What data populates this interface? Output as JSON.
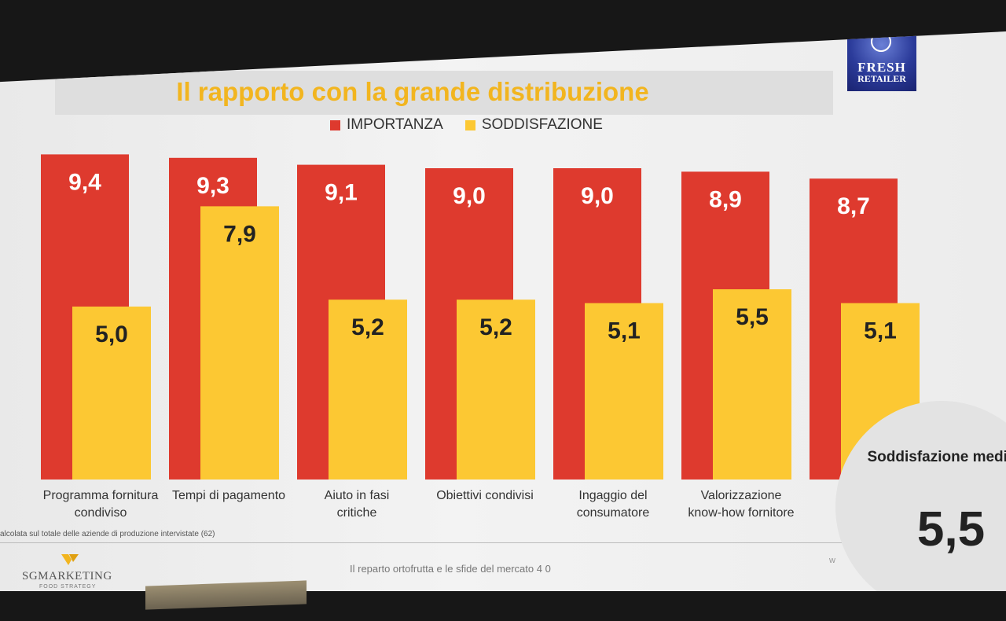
{
  "slide": {
    "title": "Il rapporto con la grande distribuzione",
    "footnote": "alcolata sul totale delle aziende di produzione intervistate (62)",
    "footer_text": "Il reparto ortofrutta e le sfide del mercato 4 0",
    "website_fragment": "w",
    "brand": {
      "name": "SGMARKETING",
      "sub": "FOOD STRATEGY"
    },
    "logo": {
      "line1": "FRESH",
      "line2": "RETAILER"
    },
    "average": {
      "label": "Soddisfazione media",
      "value": "5,5"
    }
  },
  "colors": {
    "importanza": "#de3a2e",
    "soddisfazione": "#fcc833"
  },
  "chart_data": {
    "type": "bar",
    "title": "Il rapporto con la grande distribuzione",
    "categories": [
      "Programma fornitura condiviso",
      "Tempi di pagamento",
      "Aiuto in fasi critiche",
      "Obiettivi condivisi",
      "Ingaggio del consumatore",
      "Valorizzazione know-how fornitore",
      ""
    ],
    "series": [
      {
        "name": "IMPORTANZA",
        "values": [
          9.4,
          9.3,
          9.1,
          9.0,
          9.0,
          8.9,
          8.7
        ],
        "labels": [
          "9,4",
          "9,3",
          "9,1",
          "9,0",
          "9,0",
          "8,9",
          "8,7"
        ]
      },
      {
        "name": "SODDISFAZIONE",
        "values": [
          5.0,
          7.9,
          5.2,
          5.2,
          5.1,
          5.5,
          5.1
        ],
        "labels": [
          "5,0",
          "7,9",
          "5,2",
          "5,2",
          "5,1",
          "5,5",
          "5,1"
        ]
      }
    ],
    "legend": "top-center",
    "ylim": [
      0,
      10
    ],
    "grid": false,
    "xlabel": "",
    "ylabel": ""
  }
}
